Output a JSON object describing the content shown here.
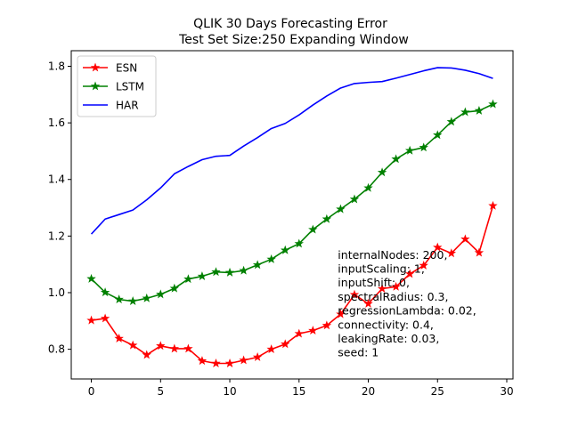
{
  "chart_data": {
    "type": "line",
    "title": [
      "QLIK 30 Days Forecasting Error",
      "Test Set Size:250  Expanding Window"
    ],
    "xlabel": "",
    "ylabel": "",
    "xlim": [
      -1.45,
      30.45
    ],
    "ylim": [
      0.695,
      1.855
    ],
    "xticks": [
      0,
      5,
      10,
      15,
      20,
      25,
      30
    ],
    "yticks": [
      0.8,
      1.0,
      1.2,
      1.4,
      1.6,
      1.8
    ],
    "ytick_labels": [
      "0.8",
      "1.0",
      "1.2",
      "1.4",
      "1.6",
      "1.8"
    ],
    "grid": false,
    "legend_position": "top-left",
    "x": [
      0,
      1,
      2,
      3,
      4,
      5,
      6,
      7,
      8,
      9,
      10,
      11,
      12,
      13,
      14,
      15,
      16,
      17,
      18,
      19,
      20,
      21,
      22,
      23,
      24,
      25,
      26,
      27,
      28,
      29
    ],
    "series": [
      {
        "name": "ESN",
        "color": "#ff0000",
        "marker": "star",
        "values": [
          0.902,
          0.909,
          0.838,
          0.814,
          0.78,
          0.812,
          0.802,
          0.802,
          0.759,
          0.75,
          0.75,
          0.761,
          0.772,
          0.8,
          0.818,
          0.855,
          0.866,
          0.884,
          0.924,
          0.993,
          0.961,
          1.014,
          1.021,
          1.066,
          1.096,
          1.16,
          1.139,
          1.189,
          1.141,
          1.307
        ]
      },
      {
        "name": "LSTM",
        "color": "#008000",
        "marker": "star",
        "values": [
          1.049,
          1.001,
          0.976,
          0.97,
          0.98,
          0.994,
          1.015,
          1.048,
          1.058,
          1.073,
          1.071,
          1.078,
          1.098,
          1.118,
          1.15,
          1.173,
          1.223,
          1.26,
          1.295,
          1.33,
          1.37,
          1.425,
          1.472,
          1.502,
          1.513,
          1.557,
          1.604,
          1.638,
          1.643,
          1.666
        ]
      },
      {
        "name": "HAR",
        "color": "#0000ff",
        "marker": "none",
        "values": [
          1.207,
          1.26,
          1.276,
          1.292,
          1.328,
          1.37,
          1.42,
          1.446,
          1.47,
          1.482,
          1.485,
          1.518,
          1.548,
          1.58,
          1.598,
          1.628,
          1.663,
          1.695,
          1.723,
          1.739,
          1.743,
          1.746,
          1.758,
          1.771,
          1.784,
          1.795,
          1.794,
          1.786,
          1.774,
          1.757
        ]
      }
    ],
    "annotation": [
      "internalNodes: 200,",
      "inputScaling: 1,",
      "inputShift: 0,",
      "spectralRadius: 0.3,",
      "regressionLambda: 0.02,",
      "connectivity: 0.4,",
      "leakingRate: 0.03,",
      "seed: 1"
    ],
    "annotation_anchor": {
      "x": 17.8,
      "y": 1.12
    }
  }
}
